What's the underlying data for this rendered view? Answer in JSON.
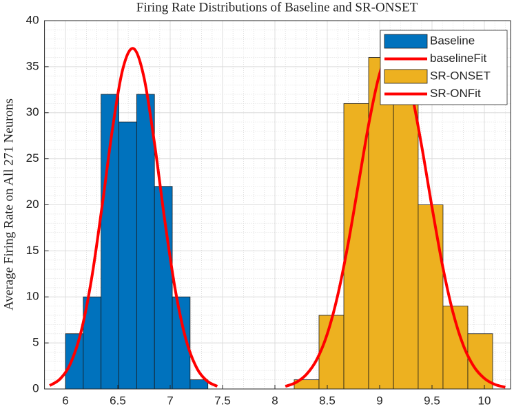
{
  "chart_data": {
    "type": "histogram",
    "title": "Firing Rate Distributions of Baseline and SR-ONSET",
    "ylabel": "Average Firing Rate on All 271 Neurons",
    "xlim": [
      5.8,
      10.25
    ],
    "ylim": [
      0,
      40
    ],
    "xticks": [
      6,
      6.5,
      7,
      7.5,
      8,
      8.5,
      9,
      9.5,
      10
    ],
    "yticks": [
      0,
      5,
      10,
      15,
      20,
      25,
      30,
      35,
      40
    ],
    "grid": true,
    "minor_grid": true,
    "legend": "upper right",
    "series": [
      {
        "name": "Baseline",
        "type": "histogram",
        "color": "#0072BD",
        "bins": [
          6.0,
          6.17,
          6.34,
          6.51,
          6.68,
          6.85,
          7.02,
          7.19,
          7.36
        ],
        "values": [
          6,
          10,
          32,
          29,
          32,
          22,
          10,
          1
        ]
      },
      {
        "name": "baselineFit",
        "type": "line",
        "color": "#FF0000",
        "x": [
          5.85,
          5.95,
          6.05,
          6.15,
          6.25,
          6.35,
          6.45,
          6.55,
          6.65,
          6.75,
          6.85,
          6.95,
          7.05,
          7.15,
          7.25,
          7.35,
          7.45
        ],
        "values": [
          0.37,
          1.1,
          2.82,
          6.26,
          12.01,
          19.87,
          28.33,
          34.85,
          36.97,
          33.83,
          26.7,
          18.17,
          10.68,
          5.4,
          2.36,
          0.89,
          0.29
        ]
      },
      {
        "name": "SR-ONSET",
        "type": "histogram",
        "color": "#EDB120",
        "bins": [
          8.184,
          8.421,
          8.658,
          8.895,
          9.132,
          9.368,
          9.605,
          9.842,
          10.079
        ],
        "values": [
          1,
          8,
          31,
          36,
          31,
          20,
          9,
          6
        ]
      },
      {
        "name": "SR-ONFit",
        "type": "line",
        "color": "#FF0000",
        "x": [
          8.1,
          8.2,
          8.3,
          8.4,
          8.5,
          8.6,
          8.7,
          8.8,
          8.9,
          9.0,
          9.1,
          9.2,
          9.3,
          9.4,
          9.5,
          9.6,
          9.7,
          9.8,
          9.9,
          10.0,
          10.1,
          10.2
        ],
        "values": [
          0.28,
          0.7,
          1.57,
          3.2,
          5.98,
          10.19,
          15.83,
          22.44,
          29.02,
          34.24,
          36.85,
          36.18,
          32.4,
          26.47,
          19.74,
          13.42,
          8.33,
          4.71,
          2.43,
          1.15,
          0.49,
          0.19
        ]
      }
    ]
  }
}
